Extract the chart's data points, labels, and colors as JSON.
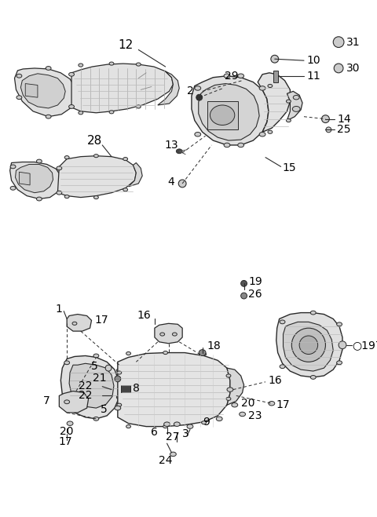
{
  "bg_color": "#ffffff",
  "lc": "#2a2a2a",
  "tc": "#000000",
  "fig_w": 4.8,
  "fig_h": 6.59,
  "dpi": 100
}
